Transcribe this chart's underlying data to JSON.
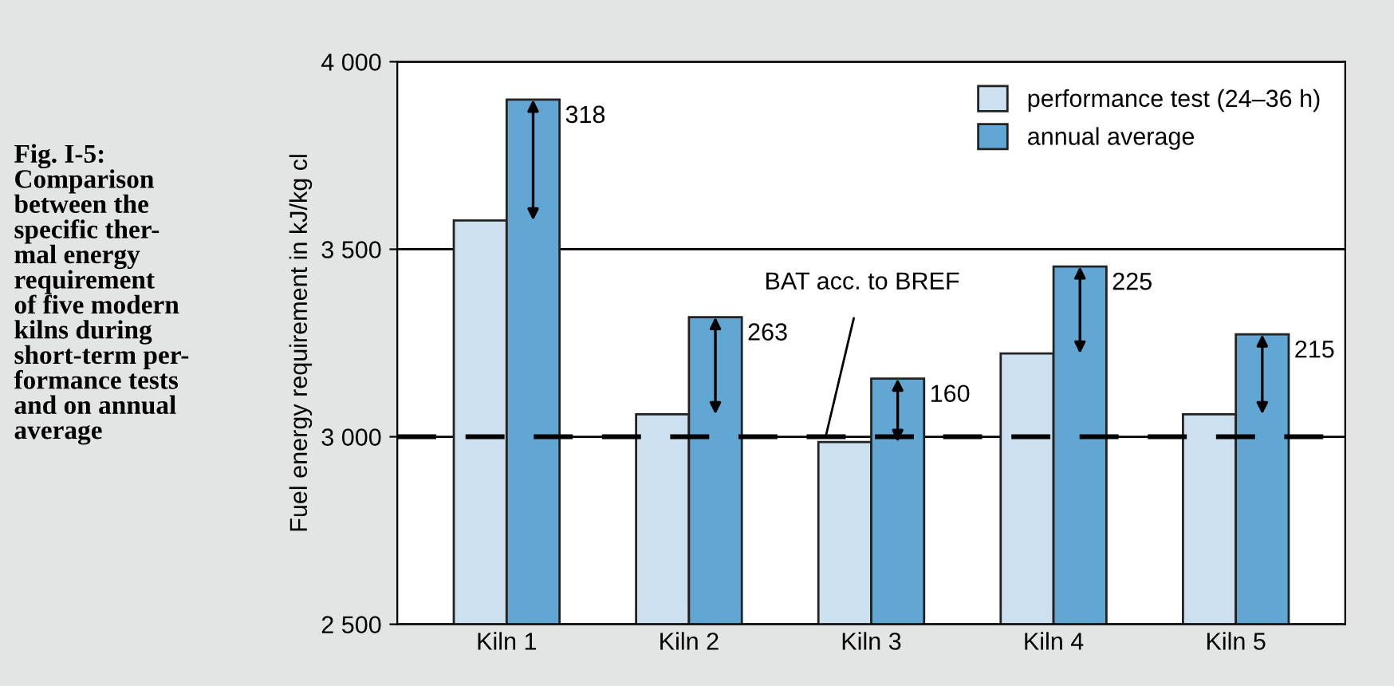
{
  "chart_data": {
    "type": "bar",
    "title": "Fig. I-5:\nComparison\nbetween the\nspecific ther-\nmal energy\nrequirement\nof five modern\nkilns during\nshort-term per-\nformance tests\nand on annual\naverage",
    "ylabel": "Fuel energy requirement in kJ/kg cl",
    "categories": [
      "Kiln 1",
      "Kiln 2",
      "Kiln 3",
      "Kiln 4",
      "Kiln 5"
    ],
    "series": [
      {
        "name": "performance test (24–36 h)",
        "color": "#cce0ef",
        "values": [
          3577,
          3060,
          2986,
          3222,
          3060
        ]
      },
      {
        "name": "annual average",
        "color": "#62a6d4",
        "values": [
          3899,
          3319,
          3155,
          3454,
          3273
        ]
      }
    ],
    "annotations": [
      {
        "text": "318",
        "x": "Kiln 1",
        "y": 3899
      },
      {
        "text": "263",
        "x": "Kiln 2",
        "y": 3319
      },
      {
        "text": "160",
        "x": "Kiln 3",
        "y": 3155
      },
      {
        "text": "225",
        "x": "Kiln 4",
        "y": 3454
      },
      {
        "text": "215",
        "x": "Kiln 5",
        "y": 3273
      }
    ],
    "ref_lines": [
      {
        "axis": "y",
        "value": 3000,
        "label": "BAT acc. to BREF",
        "color": "#000000",
        "line_style": "dashed"
      }
    ],
    "ylim": [
      2500,
      4000
    ],
    "yticks": [
      {
        "value": 2500,
        "label": "2 500"
      },
      {
        "value": 3000,
        "label": "3 000"
      },
      {
        "value": 3500,
        "label": "3 500"
      },
      {
        "value": 4000,
        "label": "4 000"
      }
    ],
    "grid": "y",
    "legend": "top right"
  }
}
